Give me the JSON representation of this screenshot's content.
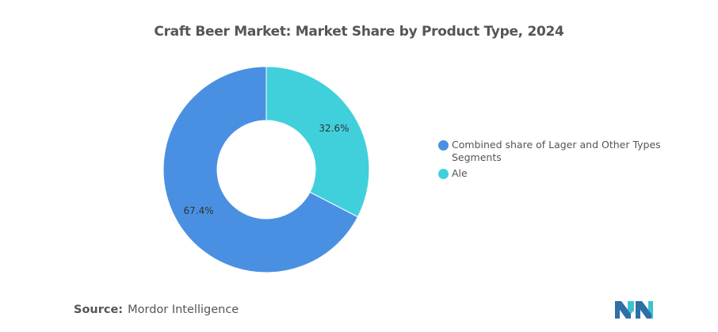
{
  "title": "Craft Beer Market: Market Share by Product Type, 2024",
  "colors": {
    "blue": "#4a90e2",
    "teal": "#40d0dc",
    "logo_blue": "#2f6fa6",
    "logo_teal": "#3dc3cf"
  },
  "chart_data": {
    "type": "pie",
    "style": "donut",
    "title": "Craft Beer Market: Market Share by Product Type, 2024",
    "legend_position": "right",
    "slices": [
      {
        "name": "Ale",
        "value": 32.6,
        "label": "32.6%",
        "color": "#40d0dc"
      },
      {
        "name": "Combined share of Lager and Other Types Segments",
        "value": 67.4,
        "label": "67.4%",
        "color": "#4a90e2"
      }
    ]
  },
  "legend": {
    "items": [
      {
        "label": "Combined share of Lager and Other Types Segments",
        "color": "#4a90e2"
      },
      {
        "label": "Ale",
        "color": "#40d0dc"
      }
    ]
  },
  "footer": {
    "source_label": "Source:",
    "source_value": "Mordor Intelligence"
  },
  "logo": {
    "icon": "mordor-intelligence-logo-icon"
  }
}
